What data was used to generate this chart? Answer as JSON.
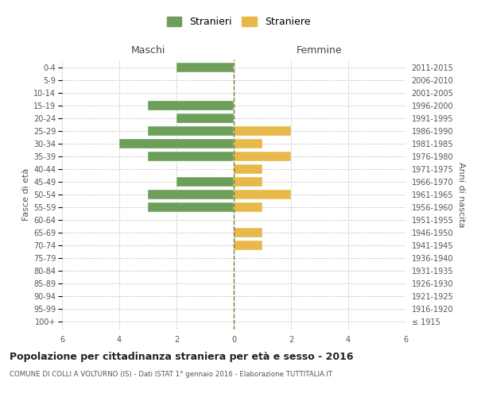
{
  "age_groups": [
    "100+",
    "95-99",
    "90-94",
    "85-89",
    "80-84",
    "75-79",
    "70-74",
    "65-69",
    "60-64",
    "55-59",
    "50-54",
    "45-49",
    "40-44",
    "35-39",
    "30-34",
    "25-29",
    "20-24",
    "15-19",
    "10-14",
    "5-9",
    "0-4"
  ],
  "birth_years": [
    "≤ 1915",
    "1916-1920",
    "1921-1925",
    "1926-1930",
    "1931-1935",
    "1936-1940",
    "1941-1945",
    "1946-1950",
    "1951-1955",
    "1956-1960",
    "1961-1965",
    "1966-1970",
    "1971-1975",
    "1976-1980",
    "1981-1985",
    "1986-1990",
    "1991-1995",
    "1996-2000",
    "2001-2005",
    "2006-2010",
    "2011-2015"
  ],
  "maschi": [
    0,
    0,
    0,
    0,
    0,
    0,
    0,
    0,
    0,
    3,
    3,
    2,
    0,
    3,
    4,
    3,
    2,
    3,
    0,
    0,
    2
  ],
  "femmine": [
    0,
    0,
    0,
    0,
    0,
    0,
    1,
    1,
    0,
    1,
    2,
    1,
    1,
    2,
    1,
    2,
    0,
    0,
    0,
    0,
    0
  ],
  "color_maschi": "#6d9e5a",
  "color_femmine": "#e8b84b",
  "title": "Popolazione per cittadinanza straniera per età e sesso - 2016",
  "subtitle": "COMUNE DI COLLI A VOLTURNO (IS) - Dati ISTAT 1° gennaio 2016 - Elaborazione TUTTITALIA.IT",
  "legend_maschi": "Stranieri",
  "legend_femmine": "Straniere",
  "label_maschi": "Maschi",
  "label_femmine": "Femmine",
  "ylabel_left": "Fasce di età",
  "ylabel_right": "Anni di nascita",
  "xlim": 6,
  "xticks": [
    -6,
    -4,
    -2,
    0,
    2,
    4,
    6
  ],
  "xtick_labels": [
    "6",
    "4",
    "2",
    "0",
    "2",
    "4",
    "6"
  ],
  "background_color": "#ffffff",
  "grid_color": "#cccccc",
  "center_line_color": "#7a7a30"
}
